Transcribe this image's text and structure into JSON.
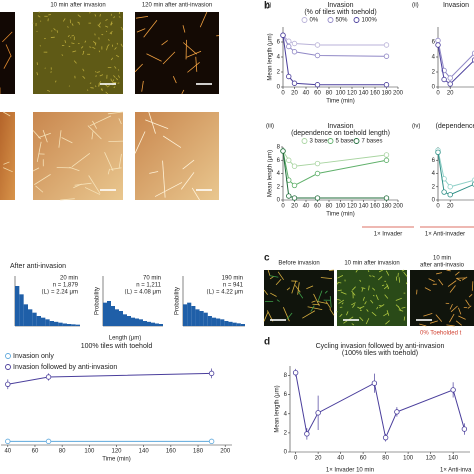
{
  "figure": {
    "panel_labels": [
      "b",
      "c",
      "d"
    ],
    "a_captions": [
      "10 min after invasion",
      "120 min after anti-invasion"
    ],
    "hist_title": "After anti-invasion",
    "hist_x_label": "Length (μm)",
    "b_footers": [
      "1× Invader",
      "1× Anti-invader"
    ],
    "c_captions": [
      "Before invasion",
      "10 min after invasion",
      "10 min",
      "after anti-invasio"
    ],
    "c_footer": "0% Toeholded t",
    "d_footers": [
      "1× Invader 10 min",
      "1× Anti-inva"
    ]
  },
  "chart_data": [
    {
      "type": "line",
      "label": "(i)",
      "title": "Invasion",
      "subtitle": "(% of tiles with toehold)",
      "y_label": "Mean length (μm)",
      "x_label": "Time (min)",
      "x": [
        0,
        10,
        20,
        60,
        180
      ],
      "xlim": [
        0,
        200
      ],
      "xticks": [
        0,
        20,
        40,
        60,
        80,
        100,
        120,
        140,
        160,
        180,
        200
      ],
      "ylim": [
        0,
        8
      ],
      "yticks": [
        0,
        2,
        4,
        6
      ],
      "legend": "top",
      "series": [
        {
          "name": "0%",
          "color": "#b9b2d8",
          "values": [
            6.9,
            6.1,
            5.8,
            5.6,
            5.6
          ]
        },
        {
          "name": "50%",
          "color": "#9088c6",
          "values": [
            6.9,
            5.4,
            4.7,
            4.2,
            4.1
          ]
        },
        {
          "name": "100%",
          "color": "#4a3e9c",
          "values": [
            6.9,
            1.4,
            0.5,
            0.3,
            0.3
          ]
        }
      ]
    },
    {
      "type": "line",
      "label": "(ii)",
      "title": "Invasion",
      "x": [
        0,
        10,
        20,
        60
      ],
      "xlim": [
        0,
        200
      ],
      "xticks": [
        0,
        20
      ],
      "ylim": [
        0,
        8
      ],
      "yticks": [
        0,
        2,
        4,
        6
      ],
      "series": [
        {
          "color": "#9088c6",
          "values": [
            6.2,
            2.2,
            1.2,
            4.5
          ]
        },
        {
          "color": "#4a3e9c",
          "values": [
            5.6,
            1.0,
            0.4,
            3.6
          ]
        }
      ]
    },
    {
      "type": "line",
      "label": "(iii)",
      "title": "Invasion",
      "subtitle": "(dependence on toehold length)",
      "y_label": "Mean length (μm)",
      "x_label": "Time (min)",
      "x": [
        0,
        10,
        20,
        60,
        180
      ],
      "xlim": [
        0,
        200
      ],
      "xticks": [
        0,
        20,
        40,
        60,
        80,
        100,
        120,
        140,
        160,
        180,
        200
      ],
      "ylim": [
        0,
        8
      ],
      "yticks": [
        0,
        2,
        4,
        6,
        8
      ],
      "legend": "top",
      "series": [
        {
          "name": "3 bases",
          "color": "#a8d4a0",
          "values": [
            7.4,
            6.0,
            5.1,
            5.5,
            6.8
          ]
        },
        {
          "name": "5 bases",
          "color": "#5fb06a",
          "values": [
            7.4,
            3.0,
            2.2,
            4.0,
            6.0
          ]
        },
        {
          "name": "7 bases",
          "color": "#1f6b3a",
          "values": [
            7.4,
            0.6,
            0.3,
            0.3,
            0.3
          ]
        }
      ]
    },
    {
      "type": "line",
      "label": "(iv)",
      "title": "(dependence",
      "x": [
        0,
        10,
        20,
        60
      ],
      "xlim": [
        0,
        200
      ],
      "xticks": [
        0,
        20
      ],
      "ylim": [
        0,
        8
      ],
      "yticks": [
        0,
        2,
        4,
        6
      ],
      "series": [
        {
          "color": "#8fd0c8",
          "values": [
            7.5,
            3.2,
            2.0,
            3.0
          ]
        },
        {
          "color": "#2e8f86",
          "values": [
            7.2,
            1.2,
            0.8,
            2.4
          ]
        }
      ]
    },
    {
      "type": "line",
      "title": "Cycling invasion followed by anti-invasion",
      "subtitle": "(100% tiles with toehold)",
      "y_label": "Mean length (μm)",
      "x": [
        0,
        10,
        20,
        70,
        80,
        90,
        140,
        150
      ],
      "xlim": [
        -5,
        155
      ],
      "xticks": [
        0,
        20,
        40,
        60,
        80,
        100,
        120,
        140
      ],
      "ylim": [
        0,
        9
      ],
      "yticks": [
        0,
        2,
        4,
        6,
        8
      ],
      "series": [
        {
          "color": "#4a3e9c",
          "values": [
            8.3,
            1.9,
            4.1,
            7.2,
            1.5,
            4.2,
            6.5,
            2.4
          ],
          "errors": [
            0.4,
            0.6,
            1.8,
            1.0,
            0.4,
            0.5,
            0.8,
            0.6
          ]
        }
      ]
    },
    {
      "type": "line",
      "title": "100% tiles with toehold",
      "x_label": "Time (min)",
      "legend": "top-left",
      "x": [
        40,
        70,
        190
      ],
      "xlim": [
        35,
        205
      ],
      "xticks": [
        40,
        60,
        80,
        100,
        120,
        140,
        160,
        180,
        200
      ],
      "ylim": [
        0,
        7
      ],
      "series": [
        {
          "name": "Invasion only",
          "color": "#5ea8dc",
          "values": [
            0.3,
            0.3,
            0.3
          ],
          "errors": [
            0.1,
            0.1,
            0.1
          ]
        },
        {
          "name": "Invasion followed by anti-invasion",
          "color": "#4a3e9c",
          "values": [
            5.0,
            5.6,
            5.9
          ],
          "errors": [
            0.4,
            0.3,
            0.4
          ]
        }
      ]
    },
    {
      "type": "histogram",
      "notes": [
        "20 min",
        "n = 1,879",
        "⟨L⟩ = 2.24 μm"
      ],
      "color": "#1f5fa8",
      "bins": [
        0,
        1,
        2,
        3,
        4,
        5,
        6,
        7,
        8,
        9,
        10,
        11,
        12,
        13,
        14,
        15
      ],
      "xlim": [
        0,
        15
      ],
      "ylim": [
        0,
        0.3
      ],
      "counts": [
        0.24,
        0.19,
        0.13,
        0.1,
        0.08,
        0.06,
        0.05,
        0.04,
        0.03,
        0.025,
        0.02,
        0.015,
        0.012,
        0.01,
        0.008
      ]
    },
    {
      "type": "histogram",
      "y_label": "Probability",
      "notes": [
        "70 min",
        "n = 1,211",
        "⟨L⟩ = 4.08 μm"
      ],
      "color": "#1f5fa8",
      "bins": [
        0,
        1,
        2,
        3,
        4,
        5,
        6,
        7,
        8,
        9,
        10,
        11,
        12,
        13,
        14,
        15
      ],
      "xlim": [
        0,
        15
      ],
      "ylim": [
        0,
        0.3
      ],
      "counts": [
        0.14,
        0.15,
        0.12,
        0.1,
        0.09,
        0.07,
        0.06,
        0.05,
        0.045,
        0.04,
        0.03,
        0.025,
        0.02,
        0.015,
        0.012
      ]
    },
    {
      "type": "histogram",
      "y_label": "Probability",
      "notes": [
        "190 min",
        "n = 941",
        "⟨L⟩ = 4.22 μm"
      ],
      "color": "#1f5fa8",
      "bins": [
        0,
        1,
        2,
        3,
        4,
        5,
        6,
        7,
        8,
        9,
        10,
        11,
        12,
        13,
        14,
        15
      ],
      "xlim": [
        0,
        15
      ],
      "ylim": [
        0,
        0.3
      ],
      "counts": [
        0.13,
        0.14,
        0.12,
        0.1,
        0.09,
        0.08,
        0.06,
        0.05,
        0.045,
        0.04,
        0.03,
        0.025,
        0.02,
        0.016,
        0.012
      ]
    }
  ]
}
